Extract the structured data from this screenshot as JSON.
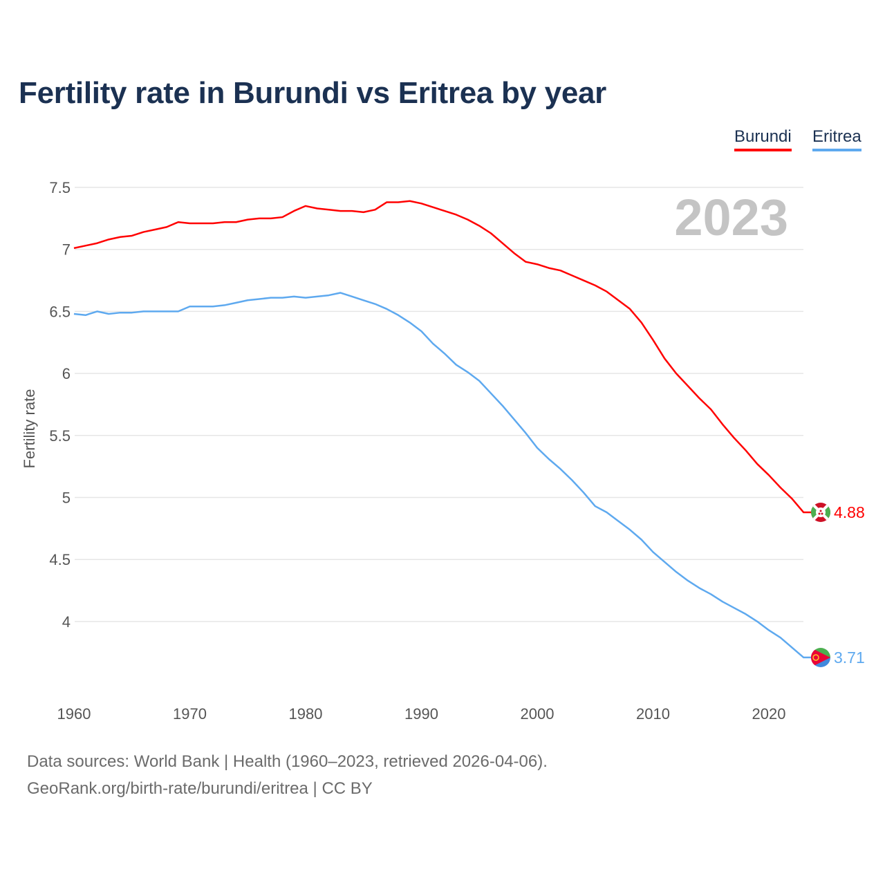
{
  "chart_data": {
    "type": "line",
    "title": "Fertility rate in Burundi vs Eritrea by year",
    "xlabel": "",
    "ylabel": "Fertility rate",
    "xlim": [
      1960,
      2023
    ],
    "ylim": [
      3.6,
      7.65
    ],
    "grid": true,
    "legend_placement": "top-right",
    "x_ticks": [
      "1960",
      "1970",
      "1980",
      "1990",
      "2000",
      "2010",
      "2020"
    ],
    "y_ticks": [
      "7.5",
      "7",
      "6.5",
      "6",
      "5.5",
      "5",
      "4.5",
      "4"
    ],
    "year_annotation": "2023",
    "x": [
      1960,
      1961,
      1962,
      1963,
      1964,
      1965,
      1966,
      1967,
      1968,
      1969,
      1970,
      1971,
      1972,
      1973,
      1974,
      1975,
      1976,
      1977,
      1978,
      1979,
      1980,
      1981,
      1982,
      1983,
      1984,
      1985,
      1986,
      1987,
      1988,
      1989,
      1990,
      1991,
      1992,
      1993,
      1994,
      1995,
      1996,
      1997,
      1998,
      1999,
      2000,
      2001,
      2002,
      2003,
      2004,
      2005,
      2006,
      2007,
      2008,
      2009,
      2010,
      2011,
      2012,
      2013,
      2014,
      2015,
      2016,
      2017,
      2018,
      2019,
      2020,
      2021,
      2022,
      2023
    ],
    "series": [
      {
        "name": "Burundi",
        "color": "#ff0000",
        "end_label": "4.88",
        "values": [
          7.01,
          7.03,
          7.05,
          7.08,
          7.1,
          7.11,
          7.14,
          7.16,
          7.18,
          7.22,
          7.21,
          7.21,
          7.21,
          7.22,
          7.22,
          7.24,
          7.25,
          7.25,
          7.26,
          7.31,
          7.35,
          7.33,
          7.32,
          7.31,
          7.31,
          7.3,
          7.32,
          7.38,
          7.38,
          7.39,
          7.37,
          7.34,
          7.31,
          7.28,
          7.24,
          7.19,
          7.13,
          7.05,
          6.97,
          6.9,
          6.88,
          6.85,
          6.83,
          6.79,
          6.75,
          6.71,
          6.66,
          6.59,
          6.52,
          6.41,
          6.27,
          6.12,
          6.0,
          5.9,
          5.8,
          5.71,
          5.59,
          5.48,
          5.38,
          5.27,
          5.18,
          5.08,
          4.99,
          4.88
        ]
      },
      {
        "name": "Eritrea",
        "color": "#5ea9ef",
        "end_label": "3.71",
        "values": [
          6.48,
          6.47,
          6.5,
          6.48,
          6.49,
          6.49,
          6.5,
          6.5,
          6.5,
          6.5,
          6.54,
          6.54,
          6.54,
          6.55,
          6.57,
          6.59,
          6.6,
          6.61,
          6.61,
          6.62,
          6.61,
          6.62,
          6.63,
          6.65,
          6.62,
          6.59,
          6.56,
          6.52,
          6.47,
          6.41,
          6.34,
          6.24,
          6.16,
          6.07,
          6.01,
          5.94,
          5.84,
          5.74,
          5.63,
          5.52,
          5.4,
          5.31,
          5.23,
          5.14,
          5.04,
          4.93,
          4.88,
          4.81,
          4.74,
          4.66,
          4.56,
          4.48,
          4.4,
          4.33,
          4.27,
          4.22,
          4.16,
          4.11,
          4.06,
          4.0,
          3.93,
          3.87,
          3.79,
          3.71
        ]
      }
    ]
  },
  "footer": {
    "sources": "Data sources: World Bank | Health (1960–2023, retrieved 2026-04-06).",
    "credit": "GeoRank.org/birth-rate/burundi/eritrea | CC BY"
  }
}
